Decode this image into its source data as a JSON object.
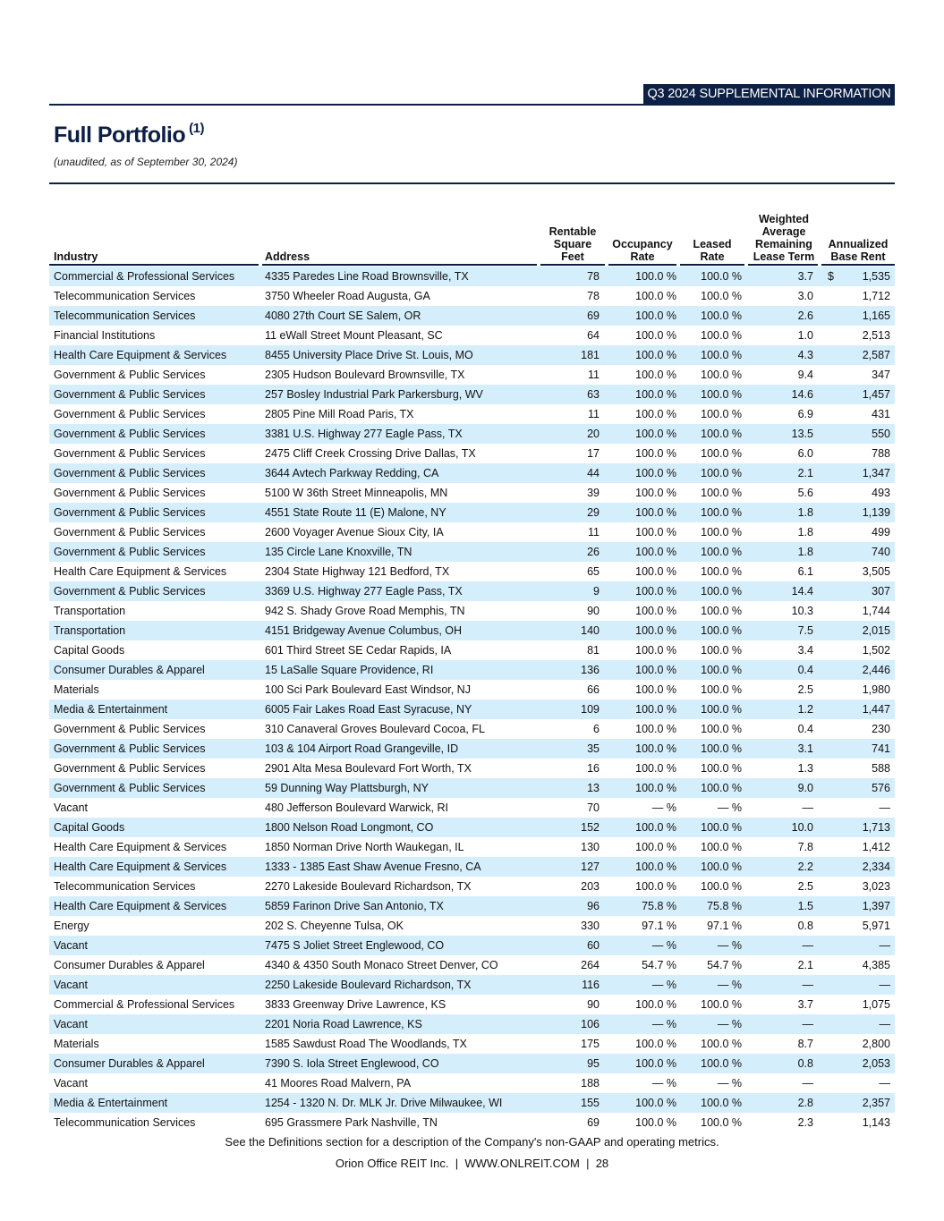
{
  "header_banner": "Q3 2024 SUPPLEMENTAL INFORMATION",
  "title": "Full Portfolio",
  "title_footnote": "(1)",
  "subtitle": "(unaudited, as of September 30, 2024)",
  "columns": {
    "industry": "Industry",
    "address": "Address",
    "sqft": [
      "Rentable",
      "Square",
      "Feet"
    ],
    "occupancy": [
      "Occupancy",
      "Rate"
    ],
    "leased": [
      "Leased",
      "Rate"
    ],
    "term": [
      "Weighted",
      "Average",
      "Remaining",
      "Lease Term"
    ],
    "rent": [
      "Annualized",
      "Base Rent"
    ]
  },
  "currency_symbol": "$",
  "rows": [
    [
      "Commercial & Professional Services",
      "4335 Paredes Line Road Brownsville, TX",
      "78",
      "100.0 %",
      "100.0 %",
      "3.7",
      "1,535"
    ],
    [
      "Telecommunication Services",
      "3750 Wheeler Road Augusta, GA",
      "78",
      "100.0 %",
      "100.0 %",
      "3.0",
      "1,712"
    ],
    [
      "Telecommunication Services",
      "4080 27th Court SE Salem, OR",
      "69",
      "100.0 %",
      "100.0 %",
      "2.6",
      "1,165"
    ],
    [
      "Financial Institutions",
      "11 eWall Street Mount Pleasant, SC",
      "64",
      "100.0 %",
      "100.0 %",
      "1.0",
      "2,513"
    ],
    [
      "Health Care Equipment & Services",
      "8455 University Place Drive St. Louis, MO",
      "181",
      "100.0 %",
      "100.0 %",
      "4.3",
      "2,587"
    ],
    [
      "Government & Public Services",
      "2305 Hudson Boulevard Brownsville, TX",
      "11",
      "100.0 %",
      "100.0 %",
      "9.4",
      "347"
    ],
    [
      "Government & Public Services",
      "257 Bosley Industrial Park Parkersburg, WV",
      "63",
      "100.0 %",
      "100.0 %",
      "14.6",
      "1,457"
    ],
    [
      "Government & Public Services",
      "2805 Pine Mill Road Paris, TX",
      "11",
      "100.0 %",
      "100.0 %",
      "6.9",
      "431"
    ],
    [
      "Government & Public Services",
      "3381 U.S. Highway 277 Eagle Pass, TX",
      "20",
      "100.0 %",
      "100.0 %",
      "13.5",
      "550"
    ],
    [
      "Government & Public Services",
      "2475 Cliff Creek Crossing Drive Dallas, TX",
      "17",
      "100.0 %",
      "100.0 %",
      "6.0",
      "788"
    ],
    [
      "Government & Public Services",
      "3644 Avtech Parkway Redding, CA",
      "44",
      "100.0 %",
      "100.0 %",
      "2.1",
      "1,347"
    ],
    [
      "Government & Public Services",
      "5100 W 36th Street Minneapolis, MN",
      "39",
      "100.0 %",
      "100.0 %",
      "5.6",
      "493"
    ],
    [
      "Government & Public Services",
      "4551 State Route 11 (E) Malone, NY",
      "29",
      "100.0 %",
      "100.0 %",
      "1.8",
      "1,139"
    ],
    [
      "Government & Public Services",
      "2600 Voyager Avenue Sioux City, IA",
      "11",
      "100.0 %",
      "100.0 %",
      "1.8",
      "499"
    ],
    [
      "Government & Public Services",
      "135 Circle Lane Knoxville, TN",
      "26",
      "100.0 %",
      "100.0 %",
      "1.8",
      "740"
    ],
    [
      "Health Care Equipment & Services",
      "2304 State Highway 121 Bedford, TX",
      "65",
      "100.0 %",
      "100.0 %",
      "6.1",
      "3,505"
    ],
    [
      "Government & Public Services",
      "3369 U.S. Highway 277 Eagle Pass, TX",
      "9",
      "100.0 %",
      "100.0 %",
      "14.4",
      "307"
    ],
    [
      "Transportation",
      "942 S. Shady Grove Road Memphis, TN",
      "90",
      "100.0 %",
      "100.0 %",
      "10.3",
      "1,744"
    ],
    [
      "Transportation",
      "4151 Bridgeway Avenue Columbus, OH",
      "140",
      "100.0 %",
      "100.0 %",
      "7.5",
      "2,015"
    ],
    [
      "Capital Goods",
      "601 Third Street SE Cedar Rapids, IA",
      "81",
      "100.0 %",
      "100.0 %",
      "3.4",
      "1,502"
    ],
    [
      "Consumer Durables & Apparel",
      "15 LaSalle Square Providence, RI",
      "136",
      "100.0 %",
      "100.0 %",
      "0.4",
      "2,446"
    ],
    [
      "Materials",
      "100 Sci Park Boulevard East Windsor, NJ",
      "66",
      "100.0 %",
      "100.0 %",
      "2.5",
      "1,980"
    ],
    [
      "Media & Entertainment",
      "6005 Fair Lakes Road East Syracuse, NY",
      "109",
      "100.0 %",
      "100.0 %",
      "1.2",
      "1,447"
    ],
    [
      "Government & Public Services",
      "310 Canaveral Groves Boulevard Cocoa, FL",
      "6",
      "100.0 %",
      "100.0 %",
      "0.4",
      "230"
    ],
    [
      "Government & Public Services",
      "103 & 104 Airport Road Grangeville, ID",
      "35",
      "100.0 %",
      "100.0 %",
      "3.1",
      "741"
    ],
    [
      "Government & Public Services",
      "2901 Alta Mesa Boulevard Fort Worth, TX",
      "16",
      "100.0 %",
      "100.0 %",
      "1.3",
      "588"
    ],
    [
      "Government & Public Services",
      "59 Dunning Way Plattsburgh, NY",
      "13",
      "100.0 %",
      "100.0 %",
      "9.0",
      "576"
    ],
    [
      "Vacant",
      "480 Jefferson Boulevard Warwick, RI",
      "70",
      "— %",
      "— %",
      "—",
      "—"
    ],
    [
      "Capital Goods",
      "1800 Nelson Road Longmont, CO",
      "152",
      "100.0 %",
      "100.0 %",
      "10.0",
      "1,713"
    ],
    [
      "Health Care Equipment & Services",
      "1850 Norman Drive North Waukegan, IL",
      "130",
      "100.0 %",
      "100.0 %",
      "7.8",
      "1,412"
    ],
    [
      "Health Care Equipment & Services",
      "1333 - 1385 East Shaw Avenue Fresno, CA",
      "127",
      "100.0 %",
      "100.0 %",
      "2.2",
      "2,334"
    ],
    [
      "Telecommunication Services",
      "2270 Lakeside Boulevard Richardson, TX",
      "203",
      "100.0 %",
      "100.0 %",
      "2.5",
      "3,023"
    ],
    [
      "Health Care Equipment & Services",
      "5859 Farinon Drive San Antonio, TX",
      "96",
      "75.8 %",
      "75.8 %",
      "1.5",
      "1,397"
    ],
    [
      "Energy",
      "202 S. Cheyenne Tulsa, OK",
      "330",
      "97.1 %",
      "97.1 %",
      "0.8",
      "5,971"
    ],
    [
      "Vacant",
      "7475 S Joliet Street Englewood, CO",
      "60",
      "— %",
      "— %",
      "—",
      "—"
    ],
    [
      "Consumer Durables & Apparel",
      "4340 & 4350 South Monaco Street Denver, CO",
      "264",
      "54.7 %",
      "54.7 %",
      "2.1",
      "4,385"
    ],
    [
      "Vacant",
      "2250 Lakeside Boulevard Richardson, TX",
      "116",
      "— %",
      "— %",
      "—",
      "—"
    ],
    [
      "Commercial & Professional Services",
      "3833 Greenway Drive Lawrence, KS",
      "90",
      "100.0 %",
      "100.0 %",
      "3.7",
      "1,075"
    ],
    [
      "Vacant",
      "2201 Noria Road Lawrence, KS",
      "106",
      "— %",
      "— %",
      "—",
      "—"
    ],
    [
      "Materials",
      "1585 Sawdust Road The Woodlands, TX",
      "175",
      "100.0 %",
      "100.0 %",
      "8.7",
      "2,800"
    ],
    [
      "Consumer Durables & Apparel",
      "7390 S. Iola Street Englewood, CO",
      "95",
      "100.0 %",
      "100.0 %",
      "0.8",
      "2,053"
    ],
    [
      "Vacant",
      "41 Moores Road Malvern, PA",
      "188",
      "— %",
      "— %",
      "—",
      "—"
    ],
    [
      "Media & Entertainment",
      "1254 - 1320 N. Dr. MLK Jr. Drive Milwaukee, WI",
      "155",
      "100.0 %",
      "100.0 %",
      "2.8",
      "2,357"
    ],
    [
      "Telecommunication Services",
      "695 Grassmere Park Nashville, TN",
      "69",
      "100.0 %",
      "100.0 %",
      "2.3",
      "1,143"
    ]
  ],
  "footnote": "See the Definitions section for a description of the Company's non-GAAP and operating metrics.",
  "footer": "Orion Office REIT Inc.  |  WWW.ONLREIT.COM  |  28",
  "colors": {
    "navy": "#0c1f44",
    "row_shade": "#d5eefb"
  }
}
